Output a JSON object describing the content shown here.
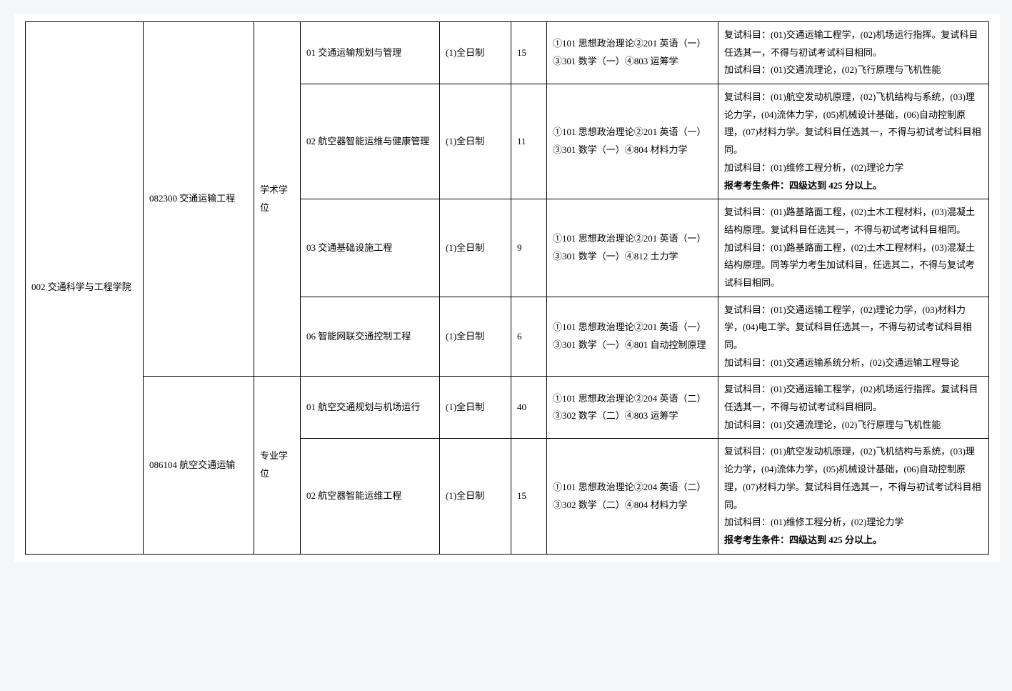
{
  "college": "002 交通科学与工程学院",
  "majors": [
    {
      "code": "082300 交通运输工程",
      "degree": "学术学位",
      "rows": [
        {
          "direction": "01 交通运输规划与管理",
          "mode": "(1)全日制",
          "quota": "15",
          "subjects": "①101 思想政治理论②201 英语（一）③301 数学（一）④803 运筹学",
          "remark": "复试科目：(01)交通运输工程学，(02)机场运行指挥。复试科目任选其一，不得与初试考试科目相同。\n加试科目：(01)交通流理论，(02)飞行原理与飞机性能",
          "bold": ""
        },
        {
          "direction": "02 航空器智能运维与健康管理",
          "mode": "(1)全日制",
          "quota": "11",
          "subjects": "①101 思想政治理论②201 英语（一）③301 数学（一）④804 材料力学",
          "remark": "复试科目：(01)航空发动机原理，(02)飞机结构与系统，(03)理论力学，(04)流体力学，(05)机械设计基础，(06)自动控制原理，(07)材料力学。复试科目任选其一，不得与初试考试科目相同。\n加试科目：(01)维修工程分析，(02)理论力学",
          "bold": "报考考生条件：四级达到 425 分以上。"
        },
        {
          "direction": "03 交通基础设施工程",
          "mode": "(1)全日制",
          "quota": "9",
          "subjects": "①101 思想政治理论②201 英语（一）③301 数学（一）④812 土力学",
          "remark": "复试科目：(01)路基路面工程，(02)土木工程材料，(03)混凝土结构原理。复试科目任选其一，不得与初试考试科目相同。\n加试科目：(01)路基路面工程，(02)土木工程材料，(03)混凝土结构原理。同等学力考生加试科目，任选其二，不得与复试考试科目相同。",
          "bold": ""
        },
        {
          "direction": "06 智能网联交通控制工程",
          "mode": "(1)全日制",
          "quota": "6",
          "subjects": "①101 思想政治理论②201 英语（一）③301 数学（一）④801 自动控制原理",
          "remark": "复试科目：(01)交通运输工程学，(02)理论力学，(03)材料力学，(04)电工学。复试科目任选其一，不得与初试考试科目相同。\n加试科目：(01)交通运输系统分析，(02)交通运输工程导论",
          "bold": ""
        }
      ]
    },
    {
      "code": "086104 航空交通运输",
      "degree": "专业学位",
      "rows": [
        {
          "direction": "01 航空交通规划与机场运行",
          "mode": "(1)全日制",
          "quota": "40",
          "subjects": "①101 思想政治理论②204 英语（二）③302 数学（二）④803 运筹学",
          "remark": "复试科目：(01)交通运输工程学，(02)机场运行指挥。复试科目任选其一，不得与初试考试科目相同。\n加试科目：(01)交通流理论，(02)飞行原理与飞机性能",
          "bold": ""
        },
        {
          "direction": "02 航空器智能运维工程",
          "mode": "(1)全日制",
          "quota": "15",
          "subjects": "①101 思想政治理论②204 英语（二）③302 数学（二）④804 材料力学",
          "remark": "复试科目：(01)航空发动机原理，(02)飞机结构与系统，(03)理论力学，(04)流体力学，(05)机械设计基础，(06)自动控制原理，(07)材料力学。复试科目任选其一，不得与初试考试科目相同。\n加试科目：(01)维修工程分析，(02)理论力学",
          "bold": "报考考生条件：四级达到 425 分以上。"
        }
      ]
    }
  ]
}
